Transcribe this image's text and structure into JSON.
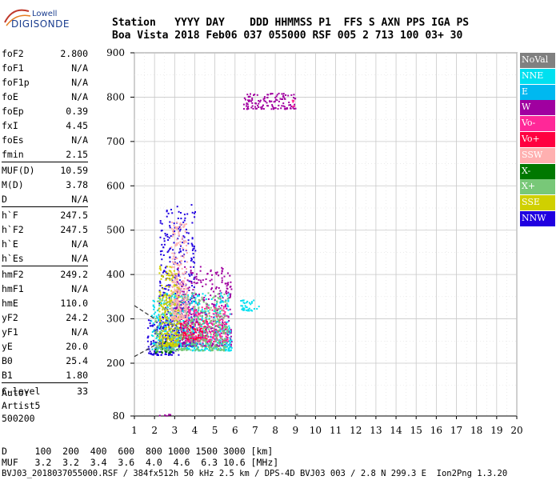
{
  "logo": {
    "top": "Lowell",
    "main": "DIGISONDE"
  },
  "header": {
    "labels": "Station   YYYY DAY    DDD HHMMSS P1  FFS S AXN PPS IGA PS",
    "values": "Boa Vista 2018 Feb06 037 055000 RSF 005 2 713 100 03+ 30"
  },
  "params": [
    {
      "label": "foF2",
      "value": "2.800"
    },
    {
      "label": "foF1",
      "value": "N/A"
    },
    {
      "label": "foF1p",
      "value": "N/A"
    },
    {
      "label": "foE",
      "value": "N/A"
    },
    {
      "label": "foEp",
      "value": "0.39"
    },
    {
      "label": "fxI",
      "value": "4.45"
    },
    {
      "label": "foEs",
      "value": "N/A"
    },
    {
      "label": "fmin",
      "value": "2.15"
    },
    {
      "label": "MUF(D)",
      "value": "10.59"
    },
    {
      "label": "M(D)",
      "value": "3.78"
    },
    {
      "label": "D",
      "value": "N/A"
    },
    {
      "label": "h`F",
      "value": "247.5"
    },
    {
      "label": "h`F2",
      "value": "247.5"
    },
    {
      "label": "h`E",
      "value": "N/A"
    },
    {
      "label": "h`Es",
      "value": "N/A"
    },
    {
      "label": "hmF2",
      "value": "249.2"
    },
    {
      "label": "hmF1",
      "value": "N/A"
    },
    {
      "label": "hmE",
      "value": "110.0"
    },
    {
      "label": "yF2",
      "value": "24.2"
    },
    {
      "label": "yF1",
      "value": "N/A"
    },
    {
      "label": "yE",
      "value": "20.0"
    },
    {
      "label": "B0",
      "value": "25.4"
    },
    {
      "label": "B1",
      "value": "1.80"
    },
    {
      "label": "C-level",
      "value": "33"
    }
  ],
  "auto": [
    "Auto:",
    "Artist5",
    "500200"
  ],
  "legend": [
    {
      "label": "NoVal",
      "color": "#808080"
    },
    {
      "label": "NNE",
      "color": "#00e0f0"
    },
    {
      "label": "E",
      "color": "#00b8f0"
    },
    {
      "label": "W",
      "color": "#a000a0"
    },
    {
      "label": "Vo-",
      "color": "#ff2898"
    },
    {
      "label": "Vo+",
      "color": "#ff0040"
    },
    {
      "label": "SSW",
      "color": "#ffb0b0"
    },
    {
      "label": "X-",
      "color": "#007800"
    },
    {
      "label": "X+",
      "color": "#78c878"
    },
    {
      "label": "SSE",
      "color": "#d0d000"
    },
    {
      "label": "NNW",
      "color": "#2000e0"
    }
  ],
  "footer": {
    "line1": "D     100  200  400  600  800 1000 1500 3000 [km]",
    "line2": "MUF   3.2  3.2  3.4  3.6  4.0  4.6  6.3 10.6 [MHz]",
    "line3": "BVJ03_2018037055000.RSF / 384fx512h 50 kHz 2.5 km / DPS-4D BVJ03 003 / 2.8 N 299.3 E  Ion2Png 1.3.20"
  },
  "chart_data": {
    "type": "scatter",
    "x_ticks": [
      "1",
      "2",
      "3",
      "4",
      "5",
      "6",
      "7",
      "8",
      "9",
      "10",
      "11",
      "12",
      "13",
      "14",
      "15",
      "16",
      "17",
      "18",
      "19",
      "20"
    ],
    "y_ticks": [
      "80",
      "200",
      "300",
      "400",
      "500",
      "600",
      "700",
      "800",
      "900"
    ],
    "xlim": [
      1,
      20
    ],
    "ylim": [
      80,
      900
    ],
    "grid": true,
    "legend_placement": "right",
    "series": [
      {
        "name": "NNW",
        "color": "#2000e0",
        "clusters": [
          {
            "fmin": 1.6,
            "fmax": 3.2,
            "hmin": 220,
            "hmax": 300
          },
          {
            "fmin": 2.2,
            "fmax": 4.0,
            "hmin": 240,
            "hmax": 560
          }
        ]
      },
      {
        "name": "W",
        "color": "#a000a0",
        "clusters": [
          {
            "fmin": 3.0,
            "fmax": 5.8,
            "hmin": 240,
            "hmax": 420
          },
          {
            "fmin": 6.4,
            "fmax": 9.0,
            "hmin": 775,
            "hmax": 810
          },
          {
            "fmin": 1.8,
            "fmax": 2.8,
            "hmin": 82,
            "hmax": 86
          }
        ]
      },
      {
        "name": "NNE",
        "color": "#00e0f0",
        "clusters": [
          {
            "fmin": 1.8,
            "fmax": 5.8,
            "hmin": 230,
            "hmax": 360
          },
          {
            "fmin": 6.2,
            "fmax": 7.2,
            "hmin": 320,
            "hmax": 345
          }
        ]
      },
      {
        "name": "Vo-",
        "color": "#ff2898",
        "clusters": [
          {
            "fmin": 3.4,
            "fmax": 5.6,
            "hmin": 250,
            "hmax": 330
          },
          {
            "fmin": 8.8,
            "fmax": 9.0,
            "hmin": 780,
            "hmax": 795
          }
        ]
      },
      {
        "name": "Vo+",
        "color": "#ff0040",
        "clusters": [
          {
            "fmin": 3.2,
            "fmax": 4.6,
            "hmin": 255,
            "hmax": 300
          }
        ]
      },
      {
        "name": "X-",
        "color": "#007800",
        "clusters": [
          {
            "fmin": 2.0,
            "fmax": 2.8,
            "hmin": 225,
            "hmax": 250
          }
        ]
      },
      {
        "name": "X+",
        "color": "#78c878",
        "clusters": [
          {
            "fmin": 2.0,
            "fmax": 5.6,
            "hmin": 230,
            "hmax": 360
          }
        ]
      },
      {
        "name": "SSE",
        "color": "#d0d000",
        "clusters": [
          {
            "fmin": 2.2,
            "fmax": 3.2,
            "hmin": 240,
            "hmax": 420
          }
        ]
      },
      {
        "name": "SSW",
        "color": "#ffb0b0",
        "clusters": [
          {
            "fmin": 2.8,
            "fmax": 3.6,
            "hmin": 300,
            "hmax": 520
          }
        ]
      },
      {
        "name": "NoVal",
        "color": "#808080",
        "clusters": [
          {
            "fmin": 9.0,
            "fmax": 9.05,
            "hmin": 83,
            "hmax": 86
          }
        ]
      }
    ],
    "trace": {
      "dashed": [
        [
          0.0,
          330
        ],
        [
          2.0,
          300
        ]
      ],
      "solid": [
        [
          0.0,
          215
        ],
        [
          2.0,
          240
        ]
      ]
    }
  }
}
